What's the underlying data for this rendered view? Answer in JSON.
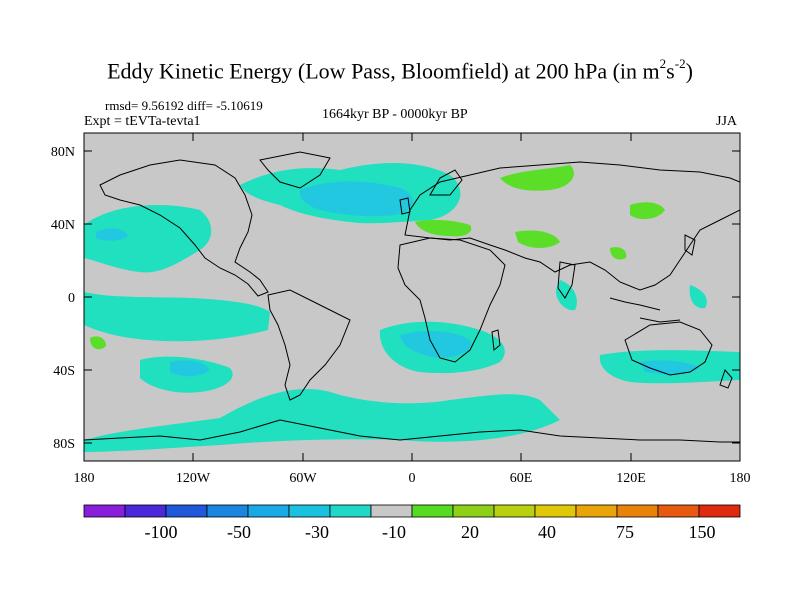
{
  "title": {
    "main": "Eddy Kinetic Energy (Low Pass, Bloomfield) at 200 hPa (in m",
    "sup1": "2",
    "mid": "s",
    "sup2": "-2",
    "end": ")"
  },
  "stats": "rmsd= 9.56192 diff= -5.10619",
  "expt": "Expt = tEVTa-tevta1",
  "period": "1664kyr BP - 0000kyr BP",
  "season": "JJA",
  "lat_labels": [
    "80N",
    "40N",
    "0",
    "40S",
    "80S"
  ],
  "lon_labels": [
    "180",
    "120W",
    "60W",
    "0",
    "60E",
    "120E",
    "180"
  ],
  "colorbar": {
    "labels": [
      "-100",
      "-50",
      "-30",
      "-10",
      "20",
      "40",
      "75",
      "150"
    ],
    "colors": [
      "#8a1fdb",
      "#4b28d9",
      "#1f58d8",
      "#1b86e0",
      "#19a9e4",
      "#19c3df",
      "#1fd8c8",
      "#c8c8c8",
      "#55dc22",
      "#8ed018",
      "#b8d010",
      "#e0c808",
      "#e8a408",
      "#e88208",
      "#e85a10",
      "#e02a10"
    ]
  },
  "colors": {
    "ocean_bg": "#c8c8c8",
    "cyan": "#20e0c0",
    "blue": "#22c8e0",
    "green": "#5ade28"
  }
}
